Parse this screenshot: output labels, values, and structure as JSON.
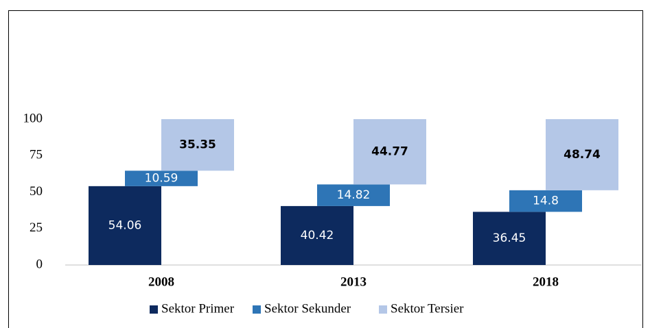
{
  "chart_data": {
    "type": "floating-stacked-bar",
    "categories": [
      "2008",
      "2013",
      "2018"
    ],
    "series": [
      {
        "name": "Sektor Primer",
        "color": "#0d2a5e",
        "values": [
          54.06,
          40.42,
          36.45
        ]
      },
      {
        "name": "Sektor Sekunder",
        "color": "#2e75b6",
        "values": [
          10.59,
          14.82,
          14.8
        ]
      },
      {
        "name": "Sektor Tersier",
        "color": "#b4c7e7",
        "values": [
          35.35,
          44.77,
          48.74
        ]
      }
    ],
    "ylim": [
      0,
      100
    ],
    "yticks": [
      0,
      25,
      50,
      75,
      100
    ],
    "grid": false,
    "legend": "bottom"
  }
}
